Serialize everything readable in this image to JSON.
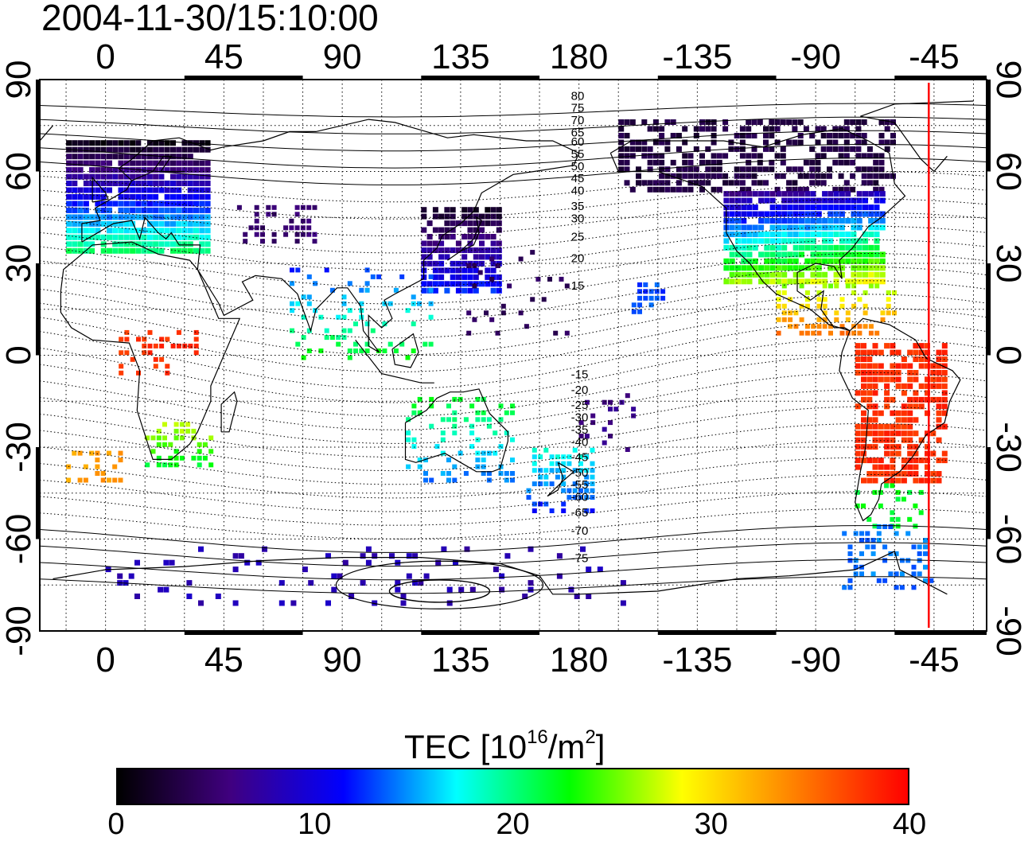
{
  "title": "2004-11-30/15:10:00",
  "map": {
    "top_lon_ticks": [
      "0",
      "45",
      "90",
      "135",
      "180",
      "-135",
      "-90",
      "-45"
    ],
    "bottom_lon_ticks": [
      "0",
      "45",
      "90",
      "135",
      "180",
      "-135",
      "-90",
      "-45"
    ],
    "left_lat_ticks": [
      "90",
      "60",
      "30",
      "0",
      "-30",
      "-60",
      "-90"
    ],
    "right_lat_ticks": [
      "90",
      "60",
      "30",
      "0",
      "-30",
      "-60",
      "-90"
    ],
    "lon_range": [
      -25,
      335
    ],
    "lat_range": [
      -90,
      90
    ],
    "grid": "dotted every 15 degrees",
    "magnetic_latitude_labels": [
      "80",
      "75",
      "70",
      "65",
      "60",
      "55",
      "50",
      "45",
      "40",
      "35",
      "30",
      "25",
      "20",
      "15",
      "-15",
      "-20",
      "-25",
      "-30",
      "-35",
      "-40",
      "-45",
      "-50",
      "-55",
      "-60",
      "-65",
      "-70",
      "-75"
    ],
    "marker_line_longitude": -47,
    "marker_line_color": "#ff0000"
  },
  "colorbar": {
    "title_prefix": "TEC  [10",
    "title_sup1": "16",
    "title_mid": "/m",
    "title_sup2": "2",
    "title_suffix": "]",
    "ticks": [
      "0",
      "10",
      "20",
      "30",
      "40"
    ],
    "range": [
      0,
      40
    ],
    "colormap": [
      "#000000",
      "#400080",
      "#0000ff",
      "#00ffff",
      "#00ff00",
      "#ffff00",
      "#ff8000",
      "#ff0000"
    ]
  }
}
